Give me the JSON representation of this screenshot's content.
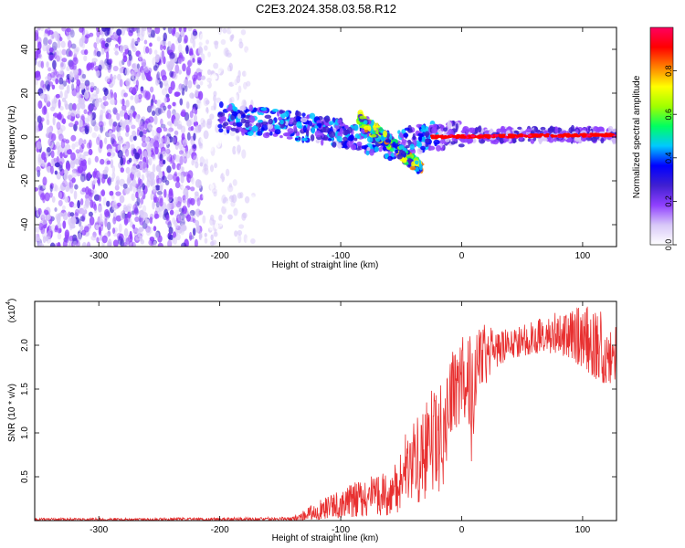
{
  "figure": {
    "title": "C2E3.2024.358.03.58.R12"
  },
  "chart_data": [
    {
      "type": "heatmap",
      "title": "C2E3.2024.358.03.58.R12",
      "xlabel": "Height of straight line (km)",
      "ylabel": "Frequency (Hz)",
      "xlim": [
        -353,
        128
      ],
      "ylim": [
        -50,
        50
      ],
      "xticks": [
        -300,
        -200,
        -100,
        0,
        100
      ],
      "xtick_labels": [
        "-300",
        "-200",
        "-100",
        "0",
        "100"
      ],
      "yticks": [
        -40,
        -20,
        0,
        20,
        40
      ],
      "ytick_labels": [
        "-40",
        "-20",
        "0",
        "20",
        "40"
      ],
      "colorbar": {
        "label": "Normalized spectral amplitude",
        "range": [
          0,
          1
        ],
        "ticks": [
          0.0,
          0.2,
          0.4,
          0.6,
          0.8
        ],
        "tick_labels": [
          "0.0",
          "0.2",
          "0.4",
          "0.6",
          "0.8"
        ],
        "colors": [
          "#ffffff",
          "#d8c8f8",
          "#9040ff",
          "#4020d0",
          "#0000ff",
          "#00c8ff",
          "#00ff60",
          "#a0ff00",
          "#ffff00",
          "#ff8000",
          "#ff0000",
          "#ff0060"
        ]
      },
      "regions": [
        {
          "name": "broadband noise (dense)",
          "x": [
            -353,
            -215
          ],
          "y": [
            -50,
            50
          ],
          "level": 0.15
        },
        {
          "name": "broadband noise (fading)",
          "x": [
            -215,
            -143
          ],
          "y": [
            -50,
            50
          ],
          "level": 0.05
        },
        {
          "name": "diffuse echo track",
          "x": [
            -200,
            128
          ],
          "y_center_points": [
            [
              -200,
              9
            ],
            [
              -150,
              6
            ],
            [
              -100,
              2
            ],
            [
              -60,
              -4
            ],
            [
              -30,
              0
            ],
            [
              0,
              1
            ],
            [
              128,
              1
            ]
          ],
          "level": 0.3
        },
        {
          "name": "diagonal branch",
          "x": [
            -85,
            -33
          ],
          "y_center_points": [
            [
              -85,
              9
            ],
            [
              -33,
              -15
            ]
          ],
          "level": 0.5
        },
        {
          "name": "narrow line",
          "x": [
            -25,
            128
          ],
          "y_center_points": [
            [
              -25,
              0
            ],
            [
              128,
              1
            ]
          ],
          "level": 0.95
        }
      ],
      "grid": false
    },
    {
      "type": "line",
      "xlabel": "Height of straight line (km)",
      "ylabel": "SNR (10 * v/v)",
      "y_multiplier": "(x10",
      "y_multiplier_exp": "4",
      "y_multiplier_close": ")",
      "xlim": [
        -353,
        128
      ],
      "ylim": [
        0,
        2.5
      ],
      "xticks": [
        -300,
        -200,
        -100,
        0,
        100
      ],
      "xtick_labels": [
        "-300",
        "-200",
        "-100",
        "0",
        "100"
      ],
      "yticks": [
        0.5,
        1.0,
        1.5,
        2.0
      ],
      "ytick_labels": [
        "0.5",
        "1.0",
        "1.5",
        "2.0"
      ],
      "line_color": "#e83030",
      "grid": false,
      "series": [
        {
          "envelope_x": [
            -353,
            -260,
            -140,
            -115,
            -100,
            -80,
            -60,
            -50,
            -45,
            -35,
            -25,
            -15,
            -10,
            0,
            5,
            10,
            12,
            20,
            30,
            40,
            60,
            80,
            100,
            120,
            128
          ],
          "envelope_min": [
            0.0,
            0.0,
            0.0,
            0.01,
            0.03,
            0.05,
            0.06,
            0.1,
            0.25,
            0.2,
            0.3,
            0.35,
            1.0,
            1.1,
            1.2,
            0.35,
            1.4,
            1.55,
            1.75,
            1.85,
            1.9,
            1.9,
            1.75,
            1.5,
            1.6
          ],
          "envelope_max": [
            0.03,
            0.03,
            0.04,
            0.25,
            0.35,
            0.5,
            0.55,
            0.8,
            1.3,
            1.15,
            1.5,
            1.6,
            1.9,
            2.1,
            2.2,
            2.2,
            2.3,
            2.25,
            2.15,
            2.2,
            2.3,
            2.4,
            2.45,
            2.4,
            2.2
          ]
        }
      ]
    }
  ]
}
